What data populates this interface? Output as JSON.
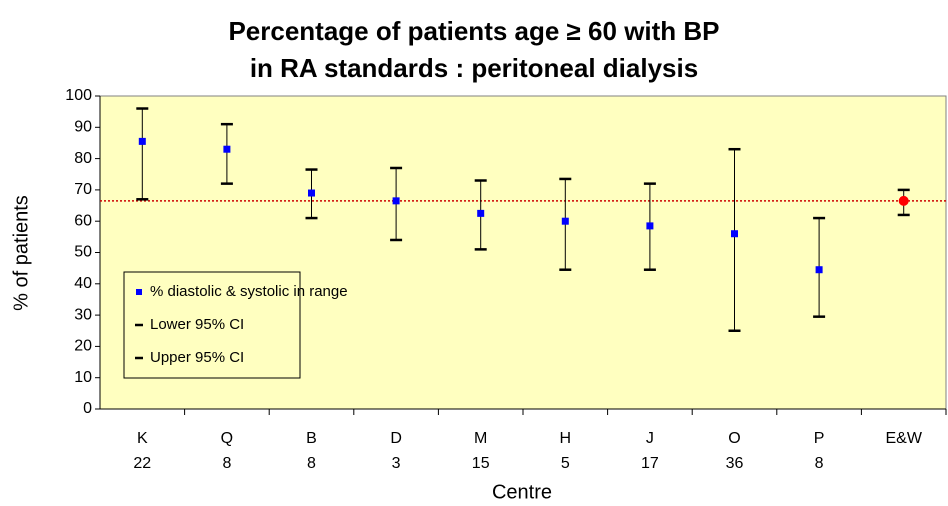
{
  "chart_data": {
    "type": "errorbar",
    "title": [
      "Percentage of patients age ≥ 60 with BP",
      "in RA standards : peritoneal dialysis"
    ],
    "x_label": "Centre",
    "y_label": "% of patients",
    "categories": [
      "K",
      "Q",
      "B",
      "D",
      "M",
      "H",
      "J",
      "O",
      "P",
      "E&W"
    ],
    "counts": [
      22,
      8,
      8,
      3,
      15,
      5,
      17,
      36,
      8,
      null
    ],
    "series": [
      {
        "name": "% diastolic & systolic  in range",
        "color": "#0000ff",
        "values": [
          85.5,
          83,
          69,
          66.5,
          62.5,
          60,
          58.5,
          56,
          44.5,
          66.5
        ]
      },
      {
        "name": "Lower 95% CI",
        "color": "#000000",
        "values": [
          67,
          72,
          61,
          54,
          51,
          44.5,
          44.5,
          25,
          29.5,
          62
        ]
      },
      {
        "name": "Upper 95% CI",
        "color": "#000000",
        "values": [
          96,
          91,
          76.5,
          77,
          73,
          73.5,
          72,
          83,
          61,
          70
        ]
      }
    ],
    "highlight": {
      "index": 9,
      "color": "#ff0000"
    },
    "reference_line": {
      "value": 66.5,
      "color": "#cc0000"
    },
    "ylim": [
      0,
      100
    ],
    "yticks": [
      0,
      10,
      20,
      30,
      40,
      50,
      60,
      70,
      80,
      90,
      100
    ],
    "background": "#ffffc0"
  }
}
